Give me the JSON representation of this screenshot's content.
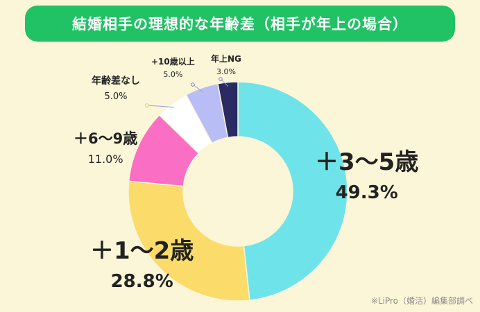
{
  "title": "結婚相手の理想的な年齢差（相手が年上の場合）",
  "source": "※LiPro（婚活）編集部調べ",
  "chart_data": {
    "type": "donut",
    "title": "結婚相手の理想的な年齢差（相手が年上の場合）",
    "unit": "%",
    "slices": [
      {
        "label": "＋3〜5歳",
        "value": 49.3,
        "value_label": "49.3%",
        "color": "#6ee4ea"
      },
      {
        "label": "＋1〜2歳",
        "value": 28.8,
        "value_label": "28.8%",
        "color": "#fbdc6b"
      },
      {
        "label": "＋6〜9歳",
        "value": 11.0,
        "value_label": "11.0%",
        "color": "#fa6fc4"
      },
      {
        "label": "年齢差なし",
        "value": 5.0,
        "value_label": "5.0%",
        "color": "#ffffff"
      },
      {
        "label": "+10歳以上",
        "value": 5.0,
        "value_label": "5.0%",
        "color": "#b8bef5"
      },
      {
        "label": "年上NG",
        "value": 3.0,
        "value_label": "3.0%",
        "color": "#2a2b62"
      }
    ]
  }
}
